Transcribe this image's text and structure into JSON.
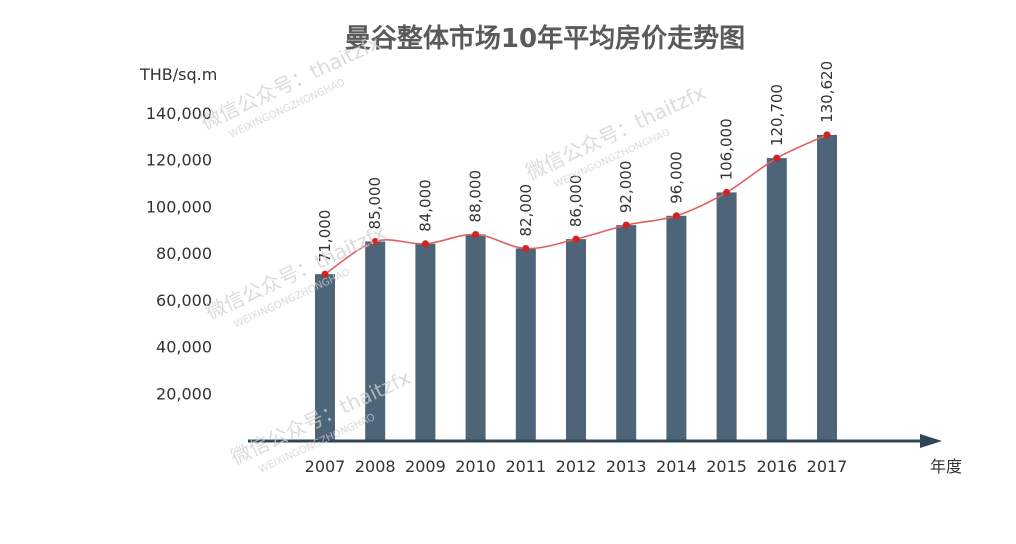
{
  "chart_data": {
    "type": "bar",
    "title": "曼谷整体市场10年平均房价走势图",
    "ylabel": "THB/sq.m",
    "xlabel": "年度",
    "categories": [
      "2007",
      "2008",
      "2009",
      "2010",
      "2011",
      "2012",
      "2013",
      "2014",
      "2015",
      "2016",
      "2017"
    ],
    "values": [
      71000,
      85000,
      84000,
      88000,
      82000,
      86000,
      92000,
      96000,
      106000,
      120700,
      130620
    ],
    "data_labels": [
      "71,000",
      "85,000",
      "84,000",
      "88,000",
      "82,000",
      "86,000",
      "92,000",
      "96,000",
      "106,000",
      "120,700",
      "130,620"
    ],
    "yticks": [
      20000,
      40000,
      60000,
      80000,
      100000,
      120000,
      140000
    ],
    "ytick_labels": [
      "20,000",
      "40,000",
      "60,000",
      "80,000",
      "100,000",
      "120,000",
      "140,000"
    ],
    "ylim": [
      0,
      140000
    ],
    "trend_line": true,
    "grid": false,
    "colors": {
      "bar": "#4e6478",
      "line": "#e06060",
      "marker": "#d22222",
      "axis": "#2f4656"
    }
  },
  "watermarks": [
    "微信公众号：thaitzfx",
    "WEIXINGONGZHONGHAO"
  ]
}
